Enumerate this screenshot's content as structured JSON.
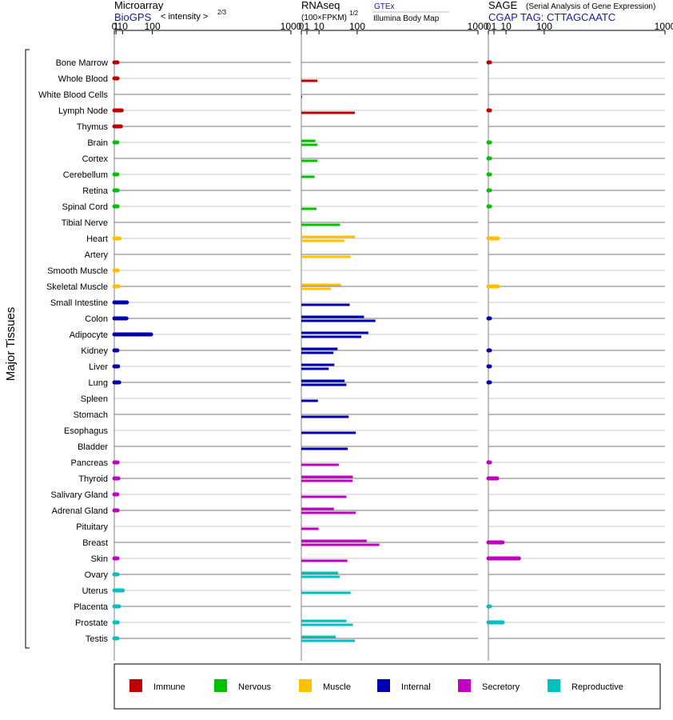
{
  "chart_data": {
    "type": "bar",
    "title": "",
    "y_axis_label": "Major Tissues",
    "panels": [
      {
        "title": "Microarray",
        "source": "BioGPS",
        "unit_label": "< intensity >",
        "unit_exp": "2/3",
        "scale": "power-2/3",
        "ticks": [
          "0",
          "1",
          "10",
          "100",
          "1000"
        ],
        "xlim": [
          0,
          1000
        ]
      },
      {
        "title": "RNAseq",
        "unit_label": "(100×FPKM)",
        "unit_exp": "1/2",
        "source_a": "GTEx",
        "source_b": "Illumina Body Map",
        "scale": "sqrt",
        "ticks": [
          "0",
          "1",
          "10",
          "100",
          "1000"
        ],
        "xlim": [
          0,
          1000
        ]
      },
      {
        "title": "SAGE",
        "subtitle": "(Serial Analysis of Gene Expression)",
        "source": "CGAP TAG: CTTAGCAATC",
        "scale": "sqrt",
        "ticks": [
          "0",
          "1",
          "10",
          "100",
          "1000"
        ],
        "xlim": [
          0,
          1000
        ]
      }
    ],
    "groups": [
      {
        "name": "Immune",
        "color": "#c00000"
      },
      {
        "name": "Nervous",
        "color": "#00c000"
      },
      {
        "name": "Muscle",
        "color": "#ffc000"
      },
      {
        "name": "Internal",
        "color": "#0000b0"
      },
      {
        "name": "Secretory",
        "color": "#c000c0"
      },
      {
        "name": "Reproductive",
        "color": "#00c0c0"
      }
    ],
    "tissues": [
      {
        "name": "Bone Marrow",
        "group": 0,
        "microarray": 2.4,
        "rnaseq": [],
        "sage": 0.005
      },
      {
        "name": "Whole Blood",
        "group": 0,
        "microarray": 2.5,
        "rnaseq": [
          8.2
        ],
        "sage": null
      },
      {
        "name": "White Blood Cells",
        "group": 0,
        "microarray": null,
        "rnaseq": [
          0.01
        ],
        "sage": null
      },
      {
        "name": "Lymph Node",
        "group": 0,
        "microarray": 8.6,
        "rnaseq": [
          92
        ],
        "sage": 0.005
      },
      {
        "name": "Thymus",
        "group": 0,
        "microarray": 7.2,
        "rnaseq": [],
        "sage": null
      },
      {
        "name": "Brain",
        "group": 1,
        "microarray": 2.2,
        "rnaseq": [
          6.3,
          8.2
        ],
        "sage": 0.005
      },
      {
        "name": "Cortex",
        "group": 1,
        "microarray": null,
        "rnaseq": [
          8.2
        ],
        "sage": 0.005
      },
      {
        "name": "Cerebellum",
        "group": 1,
        "microarray": 2.2,
        "rnaseq": [
          5.6
        ],
        "sage": 0.005
      },
      {
        "name": "Retina",
        "group": 1,
        "microarray": 2.6,
        "rnaseq": [],
        "sage": 0.005
      },
      {
        "name": "Spinal Cord",
        "group": 1,
        "microarray": 2.5,
        "rnaseq": [
          7.3
        ],
        "sage": 0.005
      },
      {
        "name": "Tibial Nerve",
        "group": 1,
        "microarray": null,
        "rnaseq": [
          48
        ],
        "sage": null
      },
      {
        "name": "Heart",
        "group": 2,
        "microarray": 5.3,
        "rnaseq": [
          92,
          59
        ],
        "sage": 2.9
      },
      {
        "name": "Artery",
        "group": 2,
        "microarray": null,
        "rnaseq": [
          78
        ],
        "sage": null
      },
      {
        "name": "Smooth Muscle",
        "group": 2,
        "microarray": 2.6,
        "rnaseq": [],
        "sage": null
      },
      {
        "name": "Skeletal Muscle",
        "group": 2,
        "microarray": 3.6,
        "rnaseq": [
          50,
          28
        ],
        "sage": 2.9
      },
      {
        "name": "Small Intestine",
        "group": 3,
        "microarray": 19,
        "rnaseq": [
          75
        ],
        "sage": null
      },
      {
        "name": "Colon",
        "group": 3,
        "microarray": 18,
        "rnaseq": [
          126,
          176
        ],
        "sage": 0.005
      },
      {
        "name": "Adipocyte",
        "group": 3,
        "microarray": 95,
        "rnaseq": [
          144,
          115
        ],
        "sage": null
      },
      {
        "name": "Kidney",
        "group": 3,
        "microarray": 2.3,
        "rnaseq": [
          42,
          33
        ],
        "sage": 0.005
      },
      {
        "name": "Liver",
        "group": 3,
        "microarray": 3.2,
        "rnaseq": [
          35,
          24
        ],
        "sage": 0.005
      },
      {
        "name": "Lung",
        "group": 3,
        "microarray": 4.7,
        "rnaseq": [
          60,
          65
        ],
        "sage": 0.005
      },
      {
        "name": "Spleen",
        "group": 3,
        "microarray": null,
        "rnaseq": [
          8.8
        ],
        "sage": null
      },
      {
        "name": "Stomach",
        "group": 3,
        "microarray": null,
        "rnaseq": [
          72
        ],
        "sage": null
      },
      {
        "name": "Esophagus",
        "group": 3,
        "microarray": null,
        "rnaseq": [
          95
        ],
        "sage": null
      },
      {
        "name": "Bladder",
        "group": 3,
        "microarray": null,
        "rnaseq": [
          69
        ],
        "sage": null
      },
      {
        "name": "Pancreas",
        "group": 4,
        "microarray": 2.6,
        "rnaseq": [
          45
        ],
        "sage": 0.005
      },
      {
        "name": "Thyroid",
        "group": 4,
        "microarray": 3.6,
        "rnaseq": [
          85,
          84
        ],
        "sage": 2.5
      },
      {
        "name": "Salivary Gland",
        "group": 4,
        "microarray": 2.3,
        "rnaseq": [
          65
        ],
        "sage": null
      },
      {
        "name": "Adrenal Gland",
        "group": 4,
        "microarray": 2.5,
        "rnaseq": [
          34,
          95
        ],
        "sage": null
      },
      {
        "name": "Pituitary",
        "group": 4,
        "microarray": null,
        "rnaseq": [
          9.5
        ],
        "sage": null
      },
      {
        "name": "Breast",
        "group": 4,
        "microarray": null,
        "rnaseq": [
          137,
          195
        ],
        "sage": 6.5
      },
      {
        "name": "Skin",
        "group": 4,
        "microarray": 2.4,
        "rnaseq": [
          68
        ],
        "sage": 30
      },
      {
        "name": "Ovary",
        "group": 5,
        "microarray": 2.4,
        "rnaseq": [
          43,
          47
        ],
        "sage": null
      },
      {
        "name": "Uterus",
        "group": 5,
        "microarray": 10.5,
        "rnaseq": [
          78
        ],
        "sage": null
      },
      {
        "name": "Placenta",
        "group": 5,
        "microarray": 4.3,
        "rnaseq": [],
        "sage": 0.005
      },
      {
        "name": "Prostate",
        "group": 5,
        "microarray": 2.7,
        "rnaseq": [
          65,
          85
        ],
        "sage": 6.5
      },
      {
        "name": "Testis",
        "group": 5,
        "microarray": 2.3,
        "rnaseq": [
          38,
          92
        ],
        "sage": null
      }
    ]
  }
}
